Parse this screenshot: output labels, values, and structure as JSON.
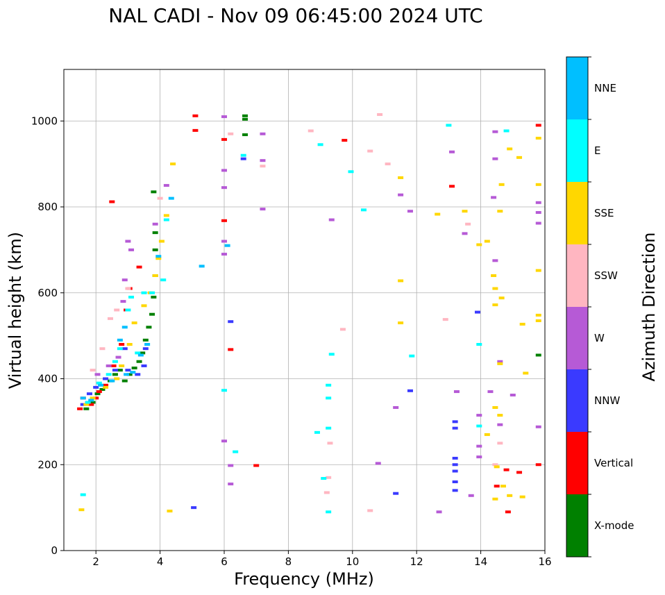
{
  "chart_data": {
    "type": "scatter",
    "title": "NAL CADI - Nov 09 06:45:00 2024 UTC",
    "xlabel": "Frequency (MHz)",
    "ylabel": "Virtual height (km)",
    "xlim": [
      1,
      16
    ],
    "ylim": [
      0,
      1120
    ],
    "xticks": [
      2,
      4,
      6,
      8,
      10,
      12,
      14,
      16
    ],
    "yticks": [
      0,
      200,
      400,
      600,
      800,
      1000
    ],
    "grid": true,
    "colorbar": {
      "label": "Azimuth Direction",
      "categories": [
        {
          "name": "X-mode",
          "color": "#008000"
        },
        {
          "name": "Vertical",
          "color": "#ff0000"
        },
        {
          "name": "NNW",
          "color": "#3a3aff"
        },
        {
          "name": "W",
          "color": "#b65ad6"
        },
        {
          "name": "SSW",
          "color": "#ffb6c1"
        },
        {
          "name": "SSE",
          "color": "#ffd700"
        },
        {
          "name": "E",
          "color": "#00ffff"
        },
        {
          "name": "NNE",
          "color": "#00bfff"
        }
      ]
    },
    "series": [
      {
        "name": "X-mode",
        "points": [
          [
            1.7,
            330
          ],
          [
            1.9,
            345
          ],
          [
            2.05,
            365
          ],
          [
            2.2,
            375
          ],
          [
            2.45,
            395
          ],
          [
            2.6,
            410
          ],
          [
            2.75,
            420
          ],
          [
            2.9,
            395
          ],
          [
            3.05,
            410
          ],
          [
            3.2,
            425
          ],
          [
            3.35,
            440
          ],
          [
            3.45,
            460
          ],
          [
            3.55,
            490
          ],
          [
            3.65,
            520
          ],
          [
            3.75,
            550
          ],
          [
            3.8,
            590
          ],
          [
            3.85,
            640
          ],
          [
            3.85,
            700
          ],
          [
            3.85,
            740
          ],
          [
            3.8,
            835
          ],
          [
            6.65,
            1012
          ],
          [
            6.65,
            1004
          ],
          [
            6.65,
            968
          ],
          [
            15.8,
            455
          ]
        ]
      },
      {
        "name": "Vertical",
        "points": [
          [
            1.5,
            330
          ],
          [
            1.6,
            355
          ],
          [
            1.75,
            345
          ],
          [
            1.85,
            340
          ],
          [
            2.0,
            355
          ],
          [
            2.1,
            370
          ],
          [
            2.3,
            385
          ],
          [
            2.55,
            430
          ],
          [
            2.8,
            480
          ],
          [
            2.95,
            560
          ],
          [
            3.05,
            610
          ],
          [
            3.35,
            660
          ],
          [
            2.5,
            812
          ],
          [
            5.1,
            1012
          ],
          [
            5.1,
            978
          ],
          [
            6.0,
            957
          ],
          [
            6.0,
            768
          ],
          [
            6.2,
            468
          ],
          [
            7.0,
            198
          ],
          [
            9.75,
            955
          ],
          [
            13.1,
            848
          ],
          [
            14.5,
            150
          ],
          [
            14.8,
            188
          ],
          [
            14.85,
            90
          ],
          [
            15.2,
            182
          ],
          [
            15.8,
            200
          ],
          [
            15.8,
            990
          ]
        ]
      },
      {
        "name": "NNW",
        "points": [
          [
            1.6,
            340
          ],
          [
            1.8,
            365
          ],
          [
            2.0,
            380
          ],
          [
            2.3,
            400
          ],
          [
            2.6,
            420
          ],
          [
            2.9,
            470
          ],
          [
            3.0,
            420
          ],
          [
            3.3,
            410
          ],
          [
            3.5,
            430
          ],
          [
            3.55,
            470
          ],
          [
            13.2,
            300
          ],
          [
            13.2,
            285
          ],
          [
            13.2,
            215
          ],
          [
            13.2,
            200
          ],
          [
            13.2,
            185
          ],
          [
            13.2,
            160
          ],
          [
            13.2,
            140
          ],
          [
            11.35,
            133
          ],
          [
            6.2,
            533
          ],
          [
            11.8,
            372
          ],
          [
            6.6,
            912
          ],
          [
            5.05,
            100
          ],
          [
            13.9,
            555
          ]
        ]
      },
      {
        "name": "W",
        "points": [
          [
            2.05,
            410
          ],
          [
            2.4,
            430
          ],
          [
            2.7,
            450
          ],
          [
            2.9,
            630
          ],
          [
            3.0,
            720
          ],
          [
            3.1,
            700
          ],
          [
            2.85,
            580
          ],
          [
            3.85,
            760
          ],
          [
            4.2,
            850
          ],
          [
            6.0,
            1010
          ],
          [
            6.0,
            885
          ],
          [
            6.0,
            845
          ],
          [
            6.0,
            720
          ],
          [
            6.0,
            690
          ],
          [
            6.0,
            255
          ],
          [
            6.2,
            155
          ],
          [
            6.2,
            198
          ],
          [
            7.2,
            970
          ],
          [
            7.2,
            908
          ],
          [
            7.2,
            795
          ],
          [
            9.35,
            770
          ],
          [
            11.35,
            333
          ],
          [
            11.5,
            828
          ],
          [
            10.8,
            203
          ],
          [
            12.7,
            90
          ],
          [
            13.1,
            928
          ],
          [
            13.25,
            370
          ],
          [
            13.5,
            738
          ],
          [
            13.7,
            128
          ],
          [
            13.95,
            315
          ],
          [
            13.95,
            243
          ],
          [
            13.95,
            218
          ],
          [
            14.3,
            370
          ],
          [
            14.45,
            675
          ],
          [
            14.45,
            975
          ],
          [
            14.45,
            912
          ],
          [
            14.4,
            822
          ],
          [
            14.6,
            293
          ],
          [
            14.6,
            440
          ],
          [
            15.0,
            362
          ],
          [
            15.8,
            810
          ],
          [
            15.8,
            787
          ],
          [
            15.8,
            762
          ],
          [
            15.8,
            288
          ],
          [
            11.8,
            790
          ]
        ]
      },
      {
        "name": "SSW",
        "points": [
          [
            1.9,
            420
          ],
          [
            2.2,
            470
          ],
          [
            2.45,
            540
          ],
          [
            2.65,
            560
          ],
          [
            3.0,
            610
          ],
          [
            4.0,
            820
          ],
          [
            6.2,
            970
          ],
          [
            7.2,
            895
          ],
          [
            8.7,
            977
          ],
          [
            9.3,
            250
          ],
          [
            9.25,
            170
          ],
          [
            9.2,
            135
          ],
          [
            10.55,
            93
          ],
          [
            10.55,
            930
          ],
          [
            11.1,
            900
          ],
          [
            12.9,
            538
          ],
          [
            13.6,
            760
          ],
          [
            14.6,
            250
          ],
          [
            14.45,
            200
          ],
          [
            9.7,
            515
          ],
          [
            10.85,
            1015
          ]
        ]
      },
      {
        "name": "SSE",
        "points": [
          [
            1.55,
            95
          ],
          [
            1.7,
            340
          ],
          [
            1.9,
            355
          ],
          [
            2.3,
            380
          ],
          [
            2.65,
            400
          ],
          [
            2.8,
            430
          ],
          [
            3.05,
            480
          ],
          [
            3.2,
            530
          ],
          [
            3.5,
            570
          ],
          [
            3.7,
            600
          ],
          [
            3.85,
            640
          ],
          [
            3.95,
            680
          ],
          [
            4.05,
            720
          ],
          [
            4.2,
            780
          ],
          [
            4.4,
            900
          ],
          [
            4.3,
            92
          ],
          [
            11.5,
            868
          ],
          [
            11.5,
            628
          ],
          [
            11.5,
            530
          ],
          [
            12.65,
            783
          ],
          [
            13.5,
            790
          ],
          [
            13.95,
            712
          ],
          [
            14.2,
            720
          ],
          [
            14.2,
            270
          ],
          [
            14.4,
            640
          ],
          [
            14.45,
            610
          ],
          [
            14.45,
            572
          ],
          [
            14.45,
            120
          ],
          [
            14.45,
            333
          ],
          [
            14.5,
            195
          ],
          [
            14.6,
            790
          ],
          [
            14.65,
            588
          ],
          [
            14.65,
            852
          ],
          [
            14.7,
            150
          ],
          [
            14.6,
            315
          ],
          [
            14.9,
            935
          ],
          [
            14.9,
            128
          ],
          [
            15.2,
            915
          ],
          [
            15.3,
            125
          ],
          [
            15.4,
            413
          ],
          [
            15.8,
            960
          ],
          [
            15.8,
            852
          ],
          [
            15.8,
            652
          ],
          [
            15.8,
            548
          ],
          [
            15.8,
            535
          ],
          [
            15.3,
            527
          ],
          [
            14.6,
            435
          ]
        ]
      },
      {
        "name": "E",
        "points": [
          [
            1.6,
            130
          ],
          [
            1.75,
            345
          ],
          [
            2.1,
            390
          ],
          [
            2.4,
            410
          ],
          [
            2.6,
            440
          ],
          [
            2.75,
            470
          ],
          [
            3.0,
            560
          ],
          [
            3.1,
            590
          ],
          [
            3.3,
            460
          ],
          [
            3.5,
            600
          ],
          [
            3.75,
            600
          ],
          [
            4.1,
            630
          ],
          [
            4.2,
            770
          ],
          [
            6.0,
            373
          ],
          [
            6.35,
            230
          ],
          [
            6.6,
            920
          ],
          [
            8.9,
            275
          ],
          [
            9.0,
            945
          ],
          [
            9.1,
            168
          ],
          [
            9.25,
            385
          ],
          [
            9.25,
            355
          ],
          [
            9.25,
            285
          ],
          [
            9.25,
            90
          ],
          [
            9.35,
            457
          ],
          [
            9.95,
            882
          ],
          [
            10.35,
            793
          ],
          [
            11.85,
            453
          ],
          [
            13.0,
            990
          ],
          [
            13.95,
            480
          ],
          [
            13.95,
            290
          ],
          [
            14.8,
            977
          ]
        ]
      },
      {
        "name": "NNE",
        "points": [
          [
            1.6,
            355
          ],
          [
            1.85,
            350
          ],
          [
            2.15,
            385
          ],
          [
            2.5,
            395
          ],
          [
            2.75,
            490
          ],
          [
            2.9,
            520
          ],
          [
            2.95,
            410
          ],
          [
            3.15,
            415
          ],
          [
            3.4,
            455
          ],
          [
            3.6,
            480
          ],
          [
            3.95,
            685
          ],
          [
            4.35,
            820
          ],
          [
            5.3,
            662
          ],
          [
            6.1,
            710
          ]
        ]
      }
    ]
  }
}
